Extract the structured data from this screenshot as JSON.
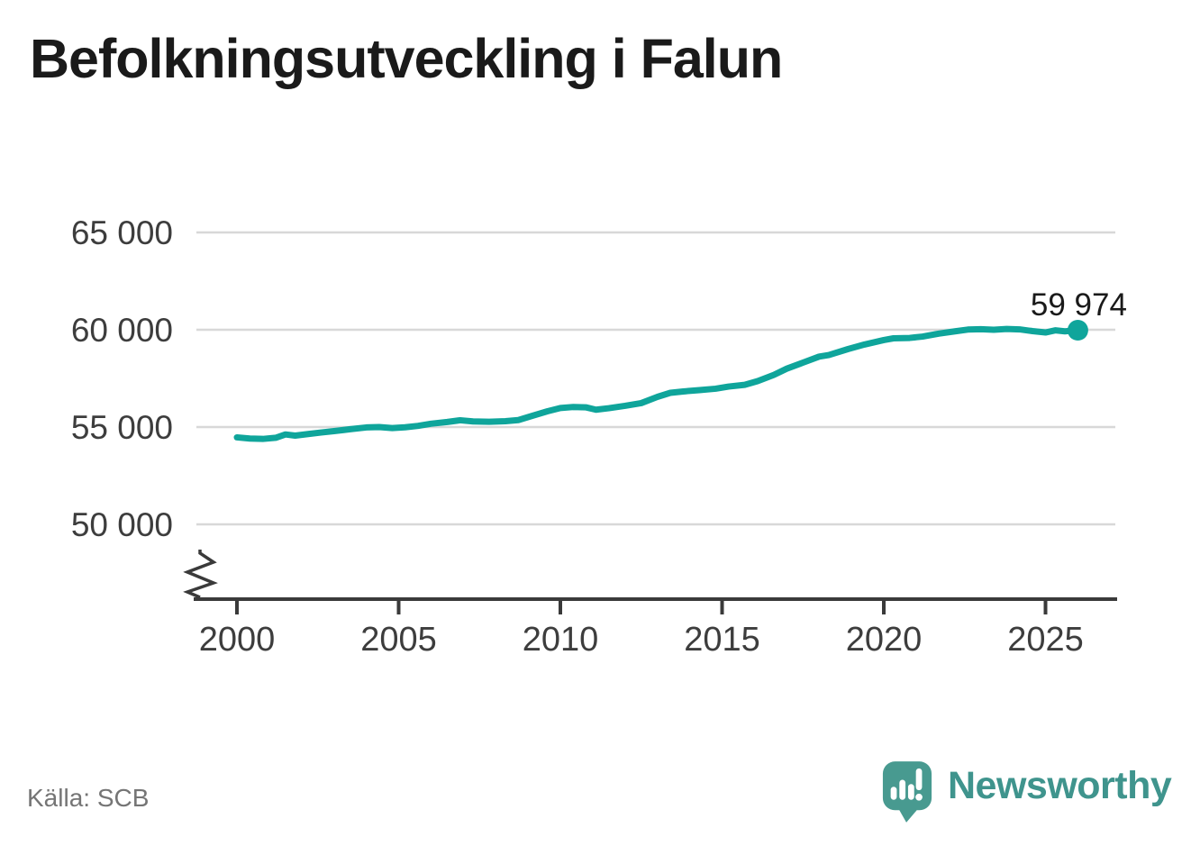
{
  "title": "Befolkningsutveckling i Falun",
  "source": "Källa: SCB",
  "branding": {
    "name": "Newsworthy",
    "wordmark_color": "#3f948d",
    "bubble_color": "#489a90"
  },
  "colors": {
    "line": "#0fa59b",
    "grid": "#d8d8d8",
    "axis": "#3a3a3a",
    "tick_label": "#3d3d3d",
    "annotation": "#1a1a1a"
  },
  "chart_data": {
    "type": "line",
    "title": "Befolkningsutveckling i Falun",
    "xlabel": "",
    "ylabel": "",
    "grid": "horizontal",
    "axis_break": true,
    "x_ticks": [
      2000,
      2005,
      2010,
      2015,
      2020,
      2025
    ],
    "x_tick_labels": [
      "2000",
      "2005",
      "2010",
      "2015",
      "2020",
      "2025"
    ],
    "y_ticks": [
      50000,
      55000,
      60000,
      65000
    ],
    "y_tick_labels": [
      "50 000",
      "55 000",
      "60 000",
      "65 000"
    ],
    "x_range": [
      1998.7,
      2027.3
    ],
    "y_range_shown": [
      48500,
      65400
    ],
    "latest": {
      "x": 2026.0,
      "value": 59974,
      "label": "59 974"
    },
    "series": [
      {
        "points": [
          [
            2000.0,
            54470
          ],
          [
            2000.4,
            54410
          ],
          [
            2000.8,
            54390
          ],
          [
            2001.2,
            54450
          ],
          [
            2001.5,
            54620
          ],
          [
            2001.8,
            54560
          ],
          [
            2002.2,
            54640
          ],
          [
            2002.6,
            54720
          ],
          [
            2003.0,
            54790
          ],
          [
            2003.5,
            54890
          ],
          [
            2004.0,
            54980
          ],
          [
            2004.4,
            55000
          ],
          [
            2004.8,
            54950
          ],
          [
            2005.2,
            54990
          ],
          [
            2005.6,
            55060
          ],
          [
            2006.0,
            55170
          ],
          [
            2006.5,
            55260
          ],
          [
            2006.9,
            55350
          ],
          [
            2007.3,
            55290
          ],
          [
            2007.8,
            55270
          ],
          [
            2008.3,
            55300
          ],
          [
            2008.7,
            55360
          ],
          [
            2009.1,
            55560
          ],
          [
            2009.6,
            55810
          ],
          [
            2010.0,
            55980
          ],
          [
            2010.4,
            56030
          ],
          [
            2010.8,
            56010
          ],
          [
            2011.1,
            55890
          ],
          [
            2011.5,
            55970
          ],
          [
            2012.0,
            56090
          ],
          [
            2012.5,
            56230
          ],
          [
            2013.0,
            56550
          ],
          [
            2013.4,
            56760
          ],
          [
            2013.8,
            56830
          ],
          [
            2014.3,
            56900
          ],
          [
            2014.8,
            56970
          ],
          [
            2015.2,
            57080
          ],
          [
            2015.7,
            57170
          ],
          [
            2016.1,
            57360
          ],
          [
            2016.6,
            57680
          ],
          [
            2017.0,
            58000
          ],
          [
            2017.5,
            58310
          ],
          [
            2018.0,
            58620
          ],
          [
            2018.3,
            58700
          ],
          [
            2018.9,
            59010
          ],
          [
            2019.4,
            59240
          ],
          [
            2020.0,
            59470
          ],
          [
            2020.3,
            59560
          ],
          [
            2020.8,
            59580
          ],
          [
            2021.2,
            59650
          ],
          [
            2021.7,
            59800
          ],
          [
            2022.2,
            59920
          ],
          [
            2022.6,
            60010
          ],
          [
            2023.0,
            60030
          ],
          [
            2023.4,
            60000
          ],
          [
            2023.8,
            60040
          ],
          [
            2024.2,
            60020
          ],
          [
            2024.6,
            59930
          ],
          [
            2025.0,
            59860
          ],
          [
            2025.3,
            59970
          ],
          [
            2025.6,
            59920
          ],
          [
            2026.0,
            59974
          ]
        ]
      }
    ]
  }
}
